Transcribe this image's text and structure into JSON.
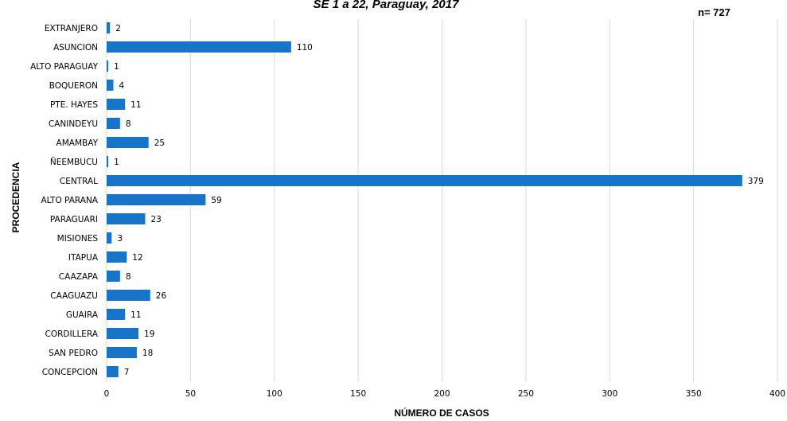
{
  "chart_data": {
    "type": "bar",
    "orientation": "horizontal",
    "title": "SE 1 a 22, Paraguay, 2017",
    "annotation": "n= 727",
    "xlabel": "NÚMERO DE CASOS",
    "ylabel": "PROCEDENCIA",
    "xlim": [
      0,
      400
    ],
    "xticks": [
      0,
      50,
      100,
      150,
      200,
      250,
      300,
      350,
      400
    ],
    "grid": "vertical",
    "bar_color": "#1874c8",
    "categories": [
      "EXTRANJERO",
      "ASUNCION",
      "ALTO PARAGUAY",
      "BOQUERON",
      "PTE. HAYES",
      "CANINDEYU",
      "AMAMBAY",
      "ÑEEMBUCU",
      "CENTRAL",
      "ALTO PARANA",
      "PARAGUARI",
      "MISIONES",
      "ITAPUA",
      "CAAZAPA",
      "CAAGUAZU",
      "GUAIRA",
      "CORDILLERA",
      "SAN PEDRO",
      "CONCEPCION"
    ],
    "values": [
      2,
      110,
      1,
      4,
      11,
      8,
      25,
      1,
      379,
      59,
      23,
      3,
      12,
      8,
      26,
      11,
      19,
      18,
      7
    ]
  }
}
